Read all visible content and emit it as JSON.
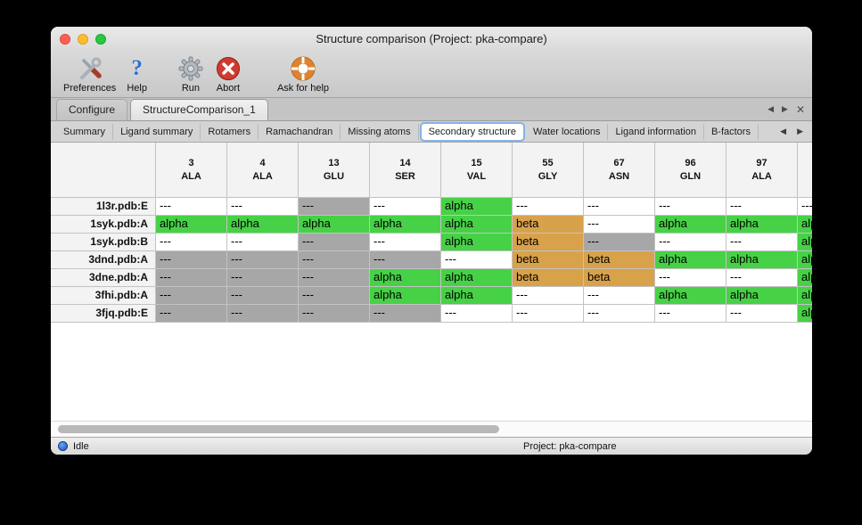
{
  "window": {
    "title": "Structure comparison (Project: pka-compare)"
  },
  "toolbar": {
    "help_glyph": "?",
    "items": [
      {
        "label": "Preferences",
        "icon": "preferences-tools-icon"
      },
      {
        "label": "Help",
        "icon": "help-question-icon"
      },
      {
        "label": "Run",
        "icon": "run-gear-icon"
      },
      {
        "label": "Abort",
        "icon": "abort-icon"
      },
      {
        "label": "Ask for help",
        "icon": "lifebuoy-icon"
      }
    ]
  },
  "tabs": {
    "items": [
      {
        "label": "Configure"
      },
      {
        "label": "StructureComparison_1"
      }
    ],
    "active": "StructureComparison_1",
    "controls": {
      "prev": "◀",
      "next": "▶",
      "close": "✕"
    }
  },
  "subtabs": {
    "items": [
      "Summary",
      "Ligand summary",
      "Rotamers",
      "Ramachandran",
      "Missing atoms",
      "Secondary structure",
      "Water locations",
      "Ligand information",
      "B-factors"
    ],
    "selected": "Secondary structure",
    "controls": {
      "prev": "◀",
      "next": "▶"
    }
  },
  "colors": {
    "alpha_bg": "#47d147",
    "beta_bg": "#d8a24b",
    "gray_bg": "#a7a7a7",
    "blank_bg": "#ffffff"
  },
  "table": {
    "cell_text": {
      "alpha": "alpha",
      "beta": "beta",
      "gray": "---",
      "blank": "---"
    },
    "columns": [
      {
        "num": "3",
        "res": "ALA"
      },
      {
        "num": "4",
        "res": "ALA"
      },
      {
        "num": "13",
        "res": "GLU"
      },
      {
        "num": "14",
        "res": "SER"
      },
      {
        "num": "15",
        "res": "VAL"
      },
      {
        "num": "55",
        "res": "GLY"
      },
      {
        "num": "67",
        "res": "ASN"
      },
      {
        "num": "96",
        "res": "GLN"
      },
      {
        "num": "97",
        "res": "ALA"
      },
      {
        "num": "",
        "res": ""
      }
    ],
    "rows": [
      {
        "name": "1l3r.pdb:E",
        "cells": [
          "blank",
          "blank",
          "gray",
          "blank",
          "alpha",
          "blank",
          "blank",
          "blank",
          "blank",
          "blank"
        ]
      },
      {
        "name": "1syk.pdb:A",
        "cells": [
          "alpha",
          "alpha",
          "alpha",
          "alpha",
          "alpha",
          "beta",
          "blank",
          "alpha",
          "alpha",
          "alpha"
        ]
      },
      {
        "name": "1syk.pdb:B",
        "cells": [
          "blank",
          "blank",
          "gray",
          "blank",
          "alpha",
          "beta",
          "gray",
          "blank",
          "blank",
          "alpha"
        ]
      },
      {
        "name": "3dnd.pdb:A",
        "cells": [
          "gray",
          "gray",
          "gray",
          "gray",
          "blank",
          "beta",
          "beta",
          "alpha",
          "alpha",
          "alpha"
        ]
      },
      {
        "name": "3dne.pdb:A",
        "cells": [
          "gray",
          "gray",
          "gray",
          "alpha",
          "alpha",
          "beta",
          "beta",
          "blank",
          "blank",
          "alpha"
        ]
      },
      {
        "name": "3fhi.pdb:A",
        "cells": [
          "gray",
          "gray",
          "gray",
          "alpha",
          "alpha",
          "blank",
          "blank",
          "alpha",
          "alpha",
          "alpha"
        ]
      },
      {
        "name": "3fjq.pdb:E",
        "cells": [
          "gray",
          "gray",
          "gray",
          "gray",
          "blank",
          "blank",
          "blank",
          "blank",
          "blank",
          "alpha"
        ]
      }
    ]
  },
  "statusbar": {
    "status": "Idle",
    "project": "Project: pka-compare"
  }
}
